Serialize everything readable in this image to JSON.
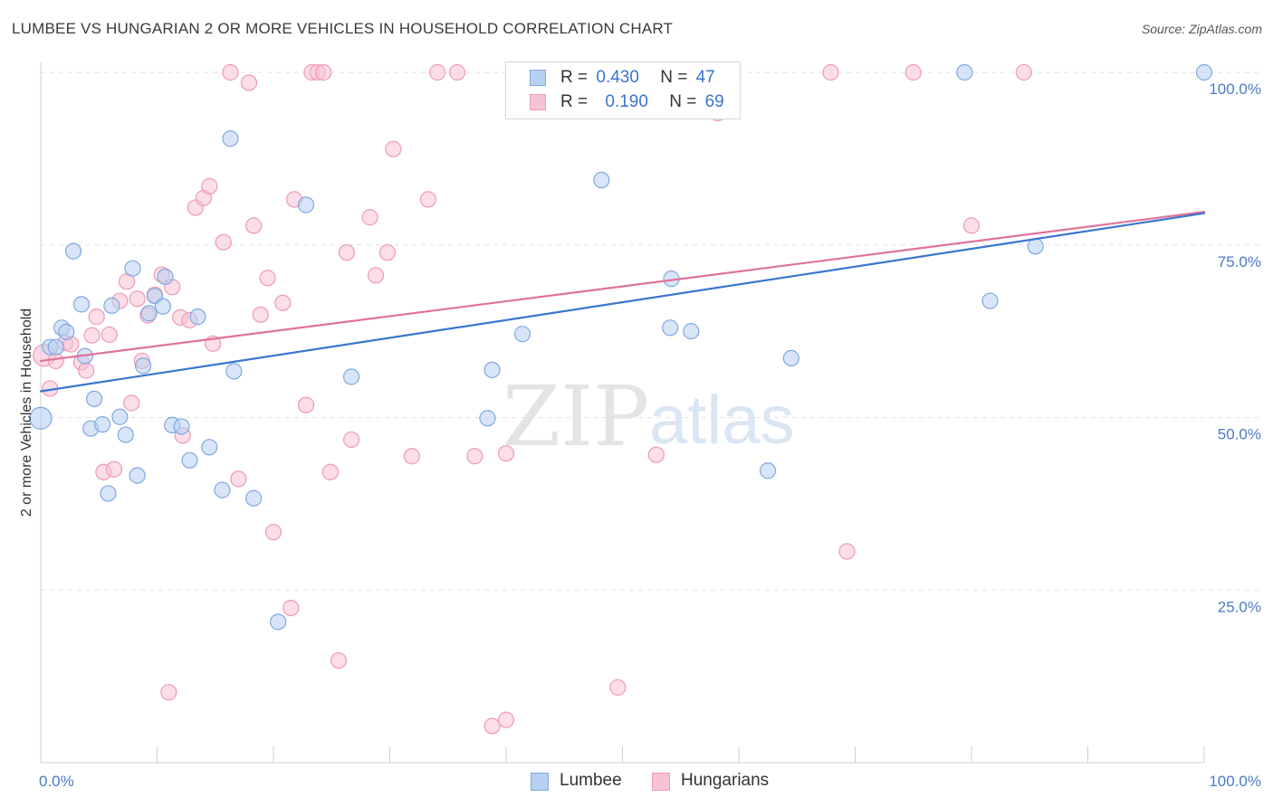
{
  "header": {
    "title": "LUMBEE VS HUNGARIAN 2 OR MORE VEHICLES IN HOUSEHOLD CORRELATION CHART",
    "source": "Source: ZipAtlas.com"
  },
  "watermark": {
    "zip": "ZIP",
    "atlas": "atlas"
  },
  "legend": {
    "lumbee": {
      "r_label": "R =",
      "r_value": "0.430",
      "n_label": "N =",
      "n_value": "47"
    },
    "hungarians": {
      "r_label": "R =",
      "r_value": "0.190",
      "n_label": "N =",
      "n_value": "69"
    }
  },
  "bottom_legend": {
    "lumbee": "Lumbee",
    "hungarians": "Hungarians"
  },
  "colors": {
    "lumbee_fill": "#b8d0f2",
    "lumbee_stroke": "#7fa8e0",
    "lumbee_line": "#3a76cf",
    "hungarians_fill": "#f7c3d3",
    "hungarians_stroke": "#ee9ab5",
    "hungarians_line": "#e0729a",
    "tick": "#4a7cc9",
    "grid": "#e2e2e2"
  },
  "chart_data": {
    "type": "scatter",
    "xlabel": "",
    "ylabel": "2 or more Vehicles in Household",
    "xlim": [
      0,
      100
    ],
    "ylim": [
      0,
      100
    ],
    "x_tick_labels": [
      "0.0%",
      "100.0%"
    ],
    "y_ticks": [
      25,
      50,
      75,
      100
    ],
    "y_tick_labels": [
      "25.0%",
      "50.0%",
      "75.0%",
      "100.0%"
    ],
    "grid": true,
    "legend_placement": "top-center",
    "series": [
      {
        "name": "Lumbee",
        "trend": {
          "x0": 0,
          "y0": 53.8,
          "x1": 100,
          "y1": 79.6
        },
        "points": [
          [
            0.0,
            49.9
          ],
          [
            0.8,
            60.2
          ],
          [
            1.3,
            60.2
          ],
          [
            1.8,
            63.0
          ],
          [
            2.2,
            62.4
          ],
          [
            2.8,
            74.1
          ],
          [
            3.5,
            66.4
          ],
          [
            3.8,
            58.9
          ],
          [
            4.3,
            48.4
          ],
          [
            4.6,
            52.7
          ],
          [
            5.3,
            49.0
          ],
          [
            5.8,
            39.0
          ],
          [
            6.1,
            66.2
          ],
          [
            6.8,
            50.1
          ],
          [
            7.3,
            47.5
          ],
          [
            7.9,
            71.6
          ],
          [
            8.3,
            41.6
          ],
          [
            8.8,
            57.5
          ],
          [
            9.3,
            65.1
          ],
          [
            9.8,
            67.6
          ],
          [
            10.5,
            66.1
          ],
          [
            10.7,
            70.4
          ],
          [
            11.3,
            48.9
          ],
          [
            12.1,
            48.7
          ],
          [
            12.8,
            43.8
          ],
          [
            13.5,
            64.6
          ],
          [
            14.5,
            45.7
          ],
          [
            15.6,
            39.5
          ],
          [
            16.3,
            90.4
          ],
          [
            16.6,
            56.7
          ],
          [
            18.3,
            38.3
          ],
          [
            20.4,
            20.4
          ],
          [
            22.8,
            80.8
          ],
          [
            26.7,
            55.9
          ],
          [
            38.4,
            49.9
          ],
          [
            38.8,
            56.9
          ],
          [
            41.4,
            62.1
          ],
          [
            48.2,
            84.4
          ],
          [
            54.1,
            63.0
          ],
          [
            54.2,
            70.1
          ],
          [
            55.9,
            62.5
          ],
          [
            62.5,
            42.3
          ],
          [
            64.5,
            58.6
          ],
          [
            79.4,
            100.0
          ],
          [
            81.6,
            66.9
          ],
          [
            85.5,
            74.8
          ],
          [
            100.0,
            100.0
          ]
        ]
      },
      {
        "name": "Hungarians",
        "trend": {
          "x0": 0,
          "y0": 58.2,
          "x1": 100,
          "y1": 79.8
        },
        "points": [
          [
            0.3,
            59.0
          ],
          [
            0.8,
            54.2
          ],
          [
            1.3,
            58.2
          ],
          [
            2.1,
            60.8
          ],
          [
            2.6,
            60.6
          ],
          [
            3.5,
            58.0
          ],
          [
            3.9,
            56.8
          ],
          [
            4.4,
            61.9
          ],
          [
            4.8,
            64.6
          ],
          [
            5.4,
            42.1
          ],
          [
            5.9,
            62.0
          ],
          [
            6.3,
            42.5
          ],
          [
            6.8,
            66.9
          ],
          [
            7.4,
            69.7
          ],
          [
            7.8,
            52.1
          ],
          [
            8.3,
            67.2
          ],
          [
            8.7,
            58.2
          ],
          [
            9.2,
            64.8
          ],
          [
            9.8,
            67.8
          ],
          [
            10.4,
            70.7
          ],
          [
            11.0,
            10.2
          ],
          [
            11.3,
            68.9
          ],
          [
            12.0,
            64.5
          ],
          [
            12.2,
            47.4
          ],
          [
            12.8,
            64.1
          ],
          [
            13.3,
            80.4
          ],
          [
            14.0,
            81.8
          ],
          [
            14.5,
            83.5
          ],
          [
            14.8,
            60.7
          ],
          [
            15.7,
            75.4
          ],
          [
            16.3,
            100.0
          ],
          [
            17.0,
            41.1
          ],
          [
            17.9,
            98.5
          ],
          [
            18.3,
            77.8
          ],
          [
            18.9,
            64.9
          ],
          [
            19.5,
            70.2
          ],
          [
            20.0,
            33.4
          ],
          [
            20.8,
            66.6
          ],
          [
            21.5,
            22.4
          ],
          [
            21.8,
            81.6
          ],
          [
            22.8,
            51.8
          ],
          [
            23.3,
            100.0
          ],
          [
            23.8,
            100.0
          ],
          [
            24.3,
            100.0
          ],
          [
            24.9,
            42.1
          ],
          [
            25.6,
            14.8
          ],
          [
            26.3,
            73.9
          ],
          [
            26.7,
            46.8
          ],
          [
            28.3,
            79.0
          ],
          [
            28.8,
            70.6
          ],
          [
            29.8,
            73.9
          ],
          [
            30.3,
            88.9
          ],
          [
            31.9,
            44.4
          ],
          [
            33.3,
            81.6
          ],
          [
            34.1,
            100.0
          ],
          [
            35.8,
            100.0
          ],
          [
            37.3,
            44.4
          ],
          [
            38.8,
            5.3
          ],
          [
            40.0,
            6.2
          ],
          [
            40.0,
            44.8
          ],
          [
            42.0,
            100.0
          ],
          [
            49.6,
            10.9
          ],
          [
            52.9,
            44.6
          ],
          [
            58.2,
            94.1
          ],
          [
            67.9,
            100.0
          ],
          [
            69.3,
            30.6
          ],
          [
            75.0,
            100.0
          ],
          [
            80.0,
            77.8
          ],
          [
            84.5,
            100.0
          ]
        ]
      }
    ]
  }
}
